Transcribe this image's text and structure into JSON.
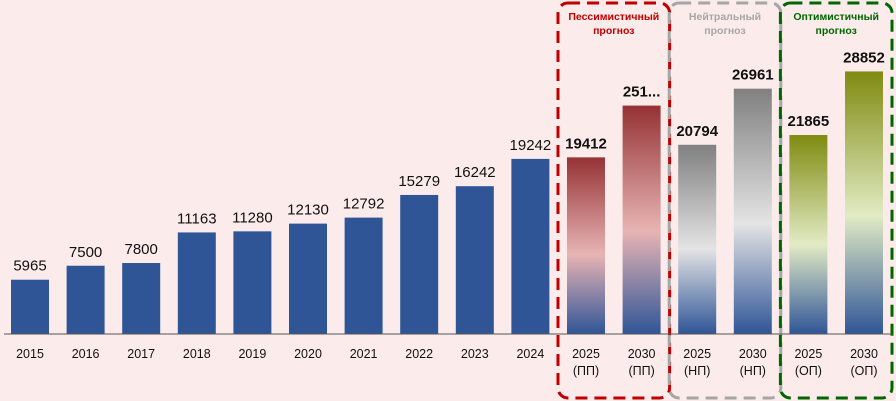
{
  "chart_data": {
    "type": "bar",
    "title": "",
    "xlabel": "",
    "ylabel": "",
    "ylim": [
      0,
      30000
    ],
    "grid": false,
    "legend": "none",
    "bars": [
      {
        "category": "2015",
        "value": 5965,
        "label": "5965",
        "style": "solid"
      },
      {
        "category": "2016",
        "value": 7500,
        "label": "7500",
        "style": "solid"
      },
      {
        "category": "2017",
        "value": 7800,
        "label": "7800",
        "style": "solid"
      },
      {
        "category": "2018",
        "value": 11163,
        "label": "11163",
        "style": "solid"
      },
      {
        "category": "2019",
        "value": 11280,
        "label": "11280",
        "style": "solid"
      },
      {
        "category": "2020",
        "value": 12130,
        "label": "12130",
        "style": "solid"
      },
      {
        "category": "2021",
        "value": 12792,
        "label": "12792",
        "style": "solid"
      },
      {
        "category": "2022",
        "value": 15279,
        "label": "15279",
        "style": "solid"
      },
      {
        "category": "2023",
        "value": 16242,
        "label": "16242",
        "style": "solid"
      },
      {
        "category": "2024",
        "value": 19242,
        "label": "19242",
        "style": "solid"
      },
      {
        "category": "2025|(ПП)",
        "value": 19412,
        "label": "19412",
        "style": "pess"
      },
      {
        "category": "2030|(ПП)",
        "value": 25100,
        "label": "251...",
        "style": "pess"
      },
      {
        "category": "2025|(НП)",
        "value": 20794,
        "label": "20794",
        "style": "neut"
      },
      {
        "category": "2030|(НП)",
        "value": 26961,
        "label": "26961",
        "style": "neut"
      },
      {
        "category": "2025|(ОП)",
        "value": 21865,
        "label": "21865",
        "style": "opt"
      },
      {
        "category": "2030|(ОП)",
        "value": 28852,
        "label": "28852",
        "style": "opt"
      }
    ],
    "scenario_boxes": [
      {
        "title_line1": "Пессимистичный",
        "title_line2": "прогноз",
        "style": "pess",
        "bars": [
          10,
          11
        ]
      },
      {
        "title_line1": "Нейтральный",
        "title_line2": "прогноз",
        "style": "neut",
        "bars": [
          12,
          13
        ]
      },
      {
        "title_line1": "Оптимистичный",
        "title_line2": "прогноз",
        "style": "opt",
        "bars": [
          14,
          15
        ]
      }
    ]
  },
  "colors": {
    "background": "#fbeceb",
    "solid_bar": "#2f5597",
    "pess_accent": "#c00000",
    "neut_accent": "#a6a6a6",
    "opt_accent": "#006600",
    "pess_label": "#c00000",
    "neut_label": "#a6a6a6",
    "opt_label": "#007000"
  }
}
